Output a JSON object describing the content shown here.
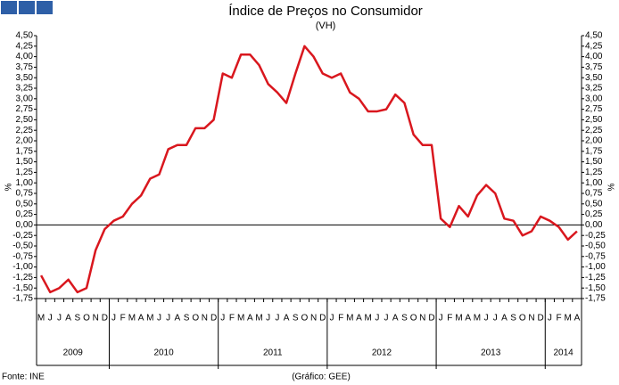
{
  "chart_data": {
    "type": "line",
    "title": "Índice de Preços no Consumidor",
    "subtitle": "(VH)",
    "y_label": "%",
    "source": "Fonte: INE",
    "note": "(Gráfico: GEE)",
    "years": [
      {
        "label": "2009",
        "months": [
          "M",
          "J",
          "J",
          "A",
          "S",
          "O",
          "N",
          "D"
        ]
      },
      {
        "label": "2010",
        "months": [
          "J",
          "F",
          "M",
          "A",
          "M",
          "J",
          "J",
          "A",
          "S",
          "O",
          "N",
          "D"
        ]
      },
      {
        "label": "2011",
        "months": [
          "J",
          "F",
          "M",
          "A",
          "M",
          "J",
          "J",
          "A",
          "S",
          "O",
          "N",
          "D"
        ]
      },
      {
        "label": "2012",
        "months": [
          "J",
          "F",
          "M",
          "A",
          "M",
          "J",
          "J",
          "A",
          "S",
          "O",
          "N",
          "D"
        ]
      },
      {
        "label": "2013",
        "months": [
          "J",
          "F",
          "M",
          "A",
          "M",
          "J",
          "J",
          "A",
          "S",
          "O",
          "N",
          "D"
        ]
      },
      {
        "label": "2014",
        "months": [
          "J",
          "F",
          "M",
          "A"
        ]
      }
    ],
    "series": [
      {
        "color": "#d9171e",
        "values": [
          -1.2,
          -1.6,
          -1.5,
          -1.3,
          -1.6,
          -1.5,
          -0.6,
          -0.1,
          0.1,
          0.2,
          0.5,
          0.7,
          1.1,
          1.2,
          1.8,
          1.9,
          1.9,
          2.3,
          2.3,
          2.5,
          3.6,
          3.5,
          4.05,
          4.05,
          3.8,
          3.35,
          3.15,
          2.9,
          3.6,
          4.25,
          4.0,
          3.6,
          3.5,
          3.6,
          3.15,
          3.0,
          2.7,
          2.7,
          2.75,
          3.1,
          2.9,
          2.15,
          1.9,
          1.9,
          0.15,
          -0.05,
          0.45,
          0.2,
          0.7,
          0.95,
          0.75,
          0.15,
          0.1,
          -0.25,
          -0.15,
          0.2,
          0.1,
          -0.05,
          -0.35,
          -0.15
        ]
      }
    ],
    "ylim": [
      -1.75,
      4.5
    ],
    "yticks": [
      {
        "value": -1.75,
        "label": "-1,75"
      },
      {
        "value": -1.5,
        "label": "-1,50"
      },
      {
        "value": -1.25,
        "label": "-1,25"
      },
      {
        "value": -1,
        "label": "-1,00"
      },
      {
        "value": -0.75,
        "label": "-0,75"
      },
      {
        "value": -0.5,
        "label": "-0,50"
      },
      {
        "value": -0.25,
        "label": "-0,25"
      },
      {
        "value": 0,
        "label": "0,00"
      },
      {
        "value": 0.25,
        "label": "0,25"
      },
      {
        "value": 0.5,
        "label": "0,50"
      },
      {
        "value": 0.75,
        "label": "0,75"
      },
      {
        "value": 1,
        "label": "1,00"
      },
      {
        "value": 1.25,
        "label": "1,25"
      },
      {
        "value": 1.5,
        "label": "1,50"
      },
      {
        "value": 1.75,
        "label": "1,75"
      },
      {
        "value": 2,
        "label": "2,00"
      },
      {
        "value": 2.25,
        "label": "2,25"
      },
      {
        "value": 2.5,
        "label": "2,50"
      },
      {
        "value": 2.75,
        "label": "2,75"
      },
      {
        "value": 3,
        "label": "3,00"
      },
      {
        "value": 3.25,
        "label": "3,25"
      },
      {
        "value": 3.5,
        "label": "3,50"
      },
      {
        "value": 3.75,
        "label": "3,75"
      },
      {
        "value": 4,
        "label": "4,00"
      },
      {
        "value": 4.25,
        "label": "4,25"
      },
      {
        "value": 4.5,
        "label": "4,50"
      }
    ]
  }
}
